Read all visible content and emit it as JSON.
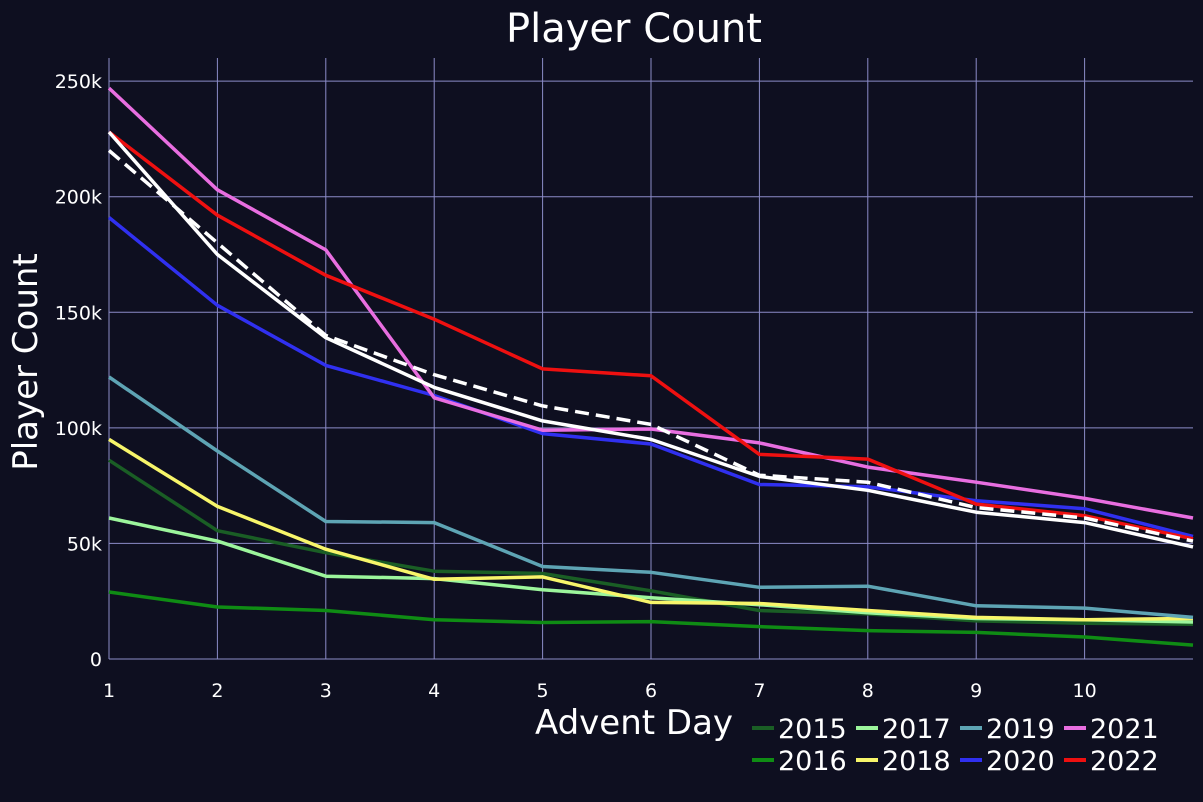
{
  "chart_data": {
    "type": "line",
    "title": "Player Count",
    "xlabel": "Advent Day",
    "ylabel": "Player Count",
    "x": [
      1,
      2,
      3,
      4,
      5,
      6,
      7,
      8,
      9,
      10,
      11
    ],
    "xticks": [
      1,
      2,
      3,
      4,
      5,
      6,
      7,
      8,
      9,
      10
    ],
    "xlim": [
      1,
      11
    ],
    "ylim": [
      0,
      260000
    ],
    "yticks": [
      0,
      50000,
      100000,
      150000,
      200000,
      250000
    ],
    "ytick_labels": [
      "0",
      "50k",
      "100k",
      "150k",
      "200k",
      "250k"
    ],
    "grid": true,
    "legend_position": "bottom-right",
    "series": [
      {
        "name": "2015",
        "color": "#1a5e25",
        "values": [
          86000,
          55500,
          46000,
          38000,
          37000,
          29500,
          21000,
          19500,
          16500,
          15500,
          15000
        ]
      },
      {
        "name": "2016",
        "color": "#0f8c14",
        "values": [
          29000,
          22500,
          21000,
          17000,
          15800,
          16200,
          14000,
          12300,
          11500,
          9500,
          6000
        ]
      },
      {
        "name": "2017",
        "color": "#9cf59c",
        "values": [
          61000,
          51000,
          35800,
          34800,
          30000,
          26500,
          23500,
          20000,
          17500,
          17000,
          16000
        ]
      },
      {
        "name": "2018",
        "color": "#f7f56a",
        "values": [
          95000,
          66000,
          47500,
          34500,
          35500,
          24500,
          24000,
          21000,
          18000,
          17000,
          17500
        ]
      },
      {
        "name": "2019",
        "color": "#5ea4b4",
        "values": [
          122000,
          90000,
          59500,
          59000,
          40000,
          37500,
          31000,
          31500,
          23000,
          22000,
          18000
        ]
      },
      {
        "name": "2020",
        "color": "#3030f0",
        "values": [
          191000,
          153000,
          127000,
          114000,
          97500,
          93000,
          75500,
          74500,
          68500,
          65000,
          53000
        ]
      },
      {
        "name": "2021",
        "color": "#e86ee0",
        "values": [
          247000,
          203000,
          177000,
          113000,
          99000,
          99500,
          93500,
          83000,
          76500,
          69500,
          61000
        ]
      },
      {
        "name": "2022",
        "color": "#ee1010",
        "values": [
          228000,
          192000,
          166000,
          147000,
          125500,
          122500,
          88500,
          86500,
          67000,
          62000,
          52000
        ]
      }
    ],
    "extra_lines": [
      {
        "color": "#ffffff",
        "style": "solid",
        "values": [
          228000,
          175000,
          139000,
          117500,
          103000,
          95000,
          79000,
          73000,
          63500,
          59000,
          48500
        ]
      },
      {
        "color": "#ffffff",
        "style": "dashed",
        "values": [
          220000,
          180000,
          140000,
          123000,
          109500,
          101500,
          79500,
          76500,
          65500,
          61000,
          51000
        ]
      }
    ]
  }
}
